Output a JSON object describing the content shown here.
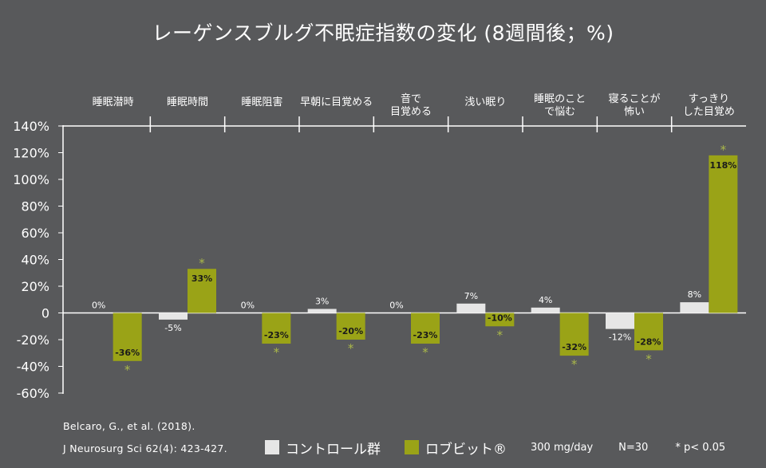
{
  "title": "レーゲンスブルグ不眠症指数の変化 (8週間後；%)",
  "colors": {
    "background": "#58595b",
    "control": "#e6e6e6",
    "treatment": "#9aa317",
    "asterisk": "#aab84a",
    "text": "#ffffff",
    "label_dark": "#1a1a1a"
  },
  "chart_data": {
    "type": "bar",
    "categories": [
      [
        "睡眠潜時"
      ],
      [
        "睡眠時間"
      ],
      [
        "睡眠阻害"
      ],
      [
        "早朝に目覚める"
      ],
      [
        "音で",
        "目覚める"
      ],
      [
        "浅い眠り"
      ],
      [
        "睡眠のこと",
        "で悩む"
      ],
      [
        "寝ることが",
        "怖い"
      ],
      [
        "すっきり",
        "した目覚め"
      ]
    ],
    "series": [
      {
        "name": "コントロール群",
        "values": [
          0,
          -5,
          0,
          3,
          0,
          7,
          4,
          -12,
          8
        ],
        "labels": [
          "0%",
          "-5%",
          "0%",
          "3%",
          "0%",
          "7%",
          "4%",
          "-12%",
          "8%"
        ]
      },
      {
        "name": "ロブビット®",
        "values": [
          -36,
          33,
          -23,
          -20,
          -23,
          -10,
          -32,
          -28,
          118
        ],
        "labels": [
          "-36%",
          "33%",
          "-23%",
          "-20%",
          "-23%",
          "-10%",
          "-32%",
          "-28%",
          "118%"
        ],
        "significant": [
          true,
          true,
          true,
          true,
          true,
          true,
          true,
          true,
          true
        ]
      }
    ],
    "ylim": [
      -60,
      140
    ],
    "yticks": [
      140,
      120,
      100,
      80,
      60,
      40,
      20,
      0,
      -20,
      -40,
      -60
    ],
    "ytick_labels": [
      "140%",
      "120%",
      "100%",
      "80%",
      "60%",
      "40%",
      "20%",
      "0",
      "-20%",
      "-40%",
      "-60%"
    ],
    "asterisk": "*",
    "grid": false,
    "legend_position": "bottom"
  },
  "citation": {
    "line1": "Belcaro, G., et al. (2018).",
    "line2": "J Neurosurg Sci 62(4): 423-427."
  },
  "legend": {
    "control_label": "コントロール群",
    "treatment_label": "ロブビット®",
    "dose": "300 mg/day",
    "n": "N=30",
    "significance": "* p< 0.05"
  }
}
